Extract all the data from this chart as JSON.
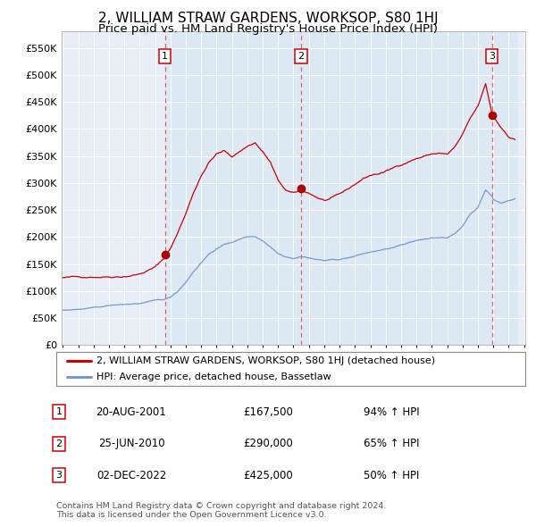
{
  "title": "2, WILLIAM STRAW GARDENS, WORKSOP, S80 1HJ",
  "subtitle": "Price paid vs. HM Land Registry's House Price Index (HPI)",
  "title_fontsize": 11,
  "subtitle_fontsize": 9.5,
  "background_color": "#ffffff",
  "plot_bg_color": "#e8eef7",
  "grid_color": "#ffffff",
  "ylim": [
    0,
    580000
  ],
  "yticks": [
    0,
    50000,
    100000,
    150000,
    200000,
    250000,
    300000,
    350000,
    400000,
    450000,
    500000,
    550000
  ],
  "ytick_labels": [
    "£0",
    "£50K",
    "£100K",
    "£150K",
    "£200K",
    "£250K",
    "£300K",
    "£350K",
    "£400K",
    "£450K",
    "£500K",
    "£550K"
  ],
  "red_line_color": "#cc0000",
  "blue_line_color": "#7799cc",
  "sale_marker_color": "#aa0000",
  "dashed_line_color": "#dd6666",
  "shade_color": "#dde8f5",
  "purchases": [
    {
      "label": "1",
      "date_str": "20-AUG-2001",
      "price": 167500,
      "x": 2001.636,
      "pct": "94% ↑ HPI"
    },
    {
      "label": "2",
      "date_str": "25-JUN-2010",
      "price": 290000,
      "x": 2010.486,
      "pct": "65% ↑ HPI"
    },
    {
      "label": "3",
      "date_str": "02-DEC-2022",
      "price": 425000,
      "x": 2022.918,
      "pct": "50% ↑ HPI"
    }
  ],
  "legend_line1": "2, WILLIAM STRAW GARDENS, WORKSOP, S80 1HJ (detached house)",
  "legend_line2": "HPI: Average price, detached house, Bassetlaw",
  "footnote": "Contains HM Land Registry data © Crown copyright and database right 2024.\nThis data is licensed under the Open Government Licence v3.0."
}
